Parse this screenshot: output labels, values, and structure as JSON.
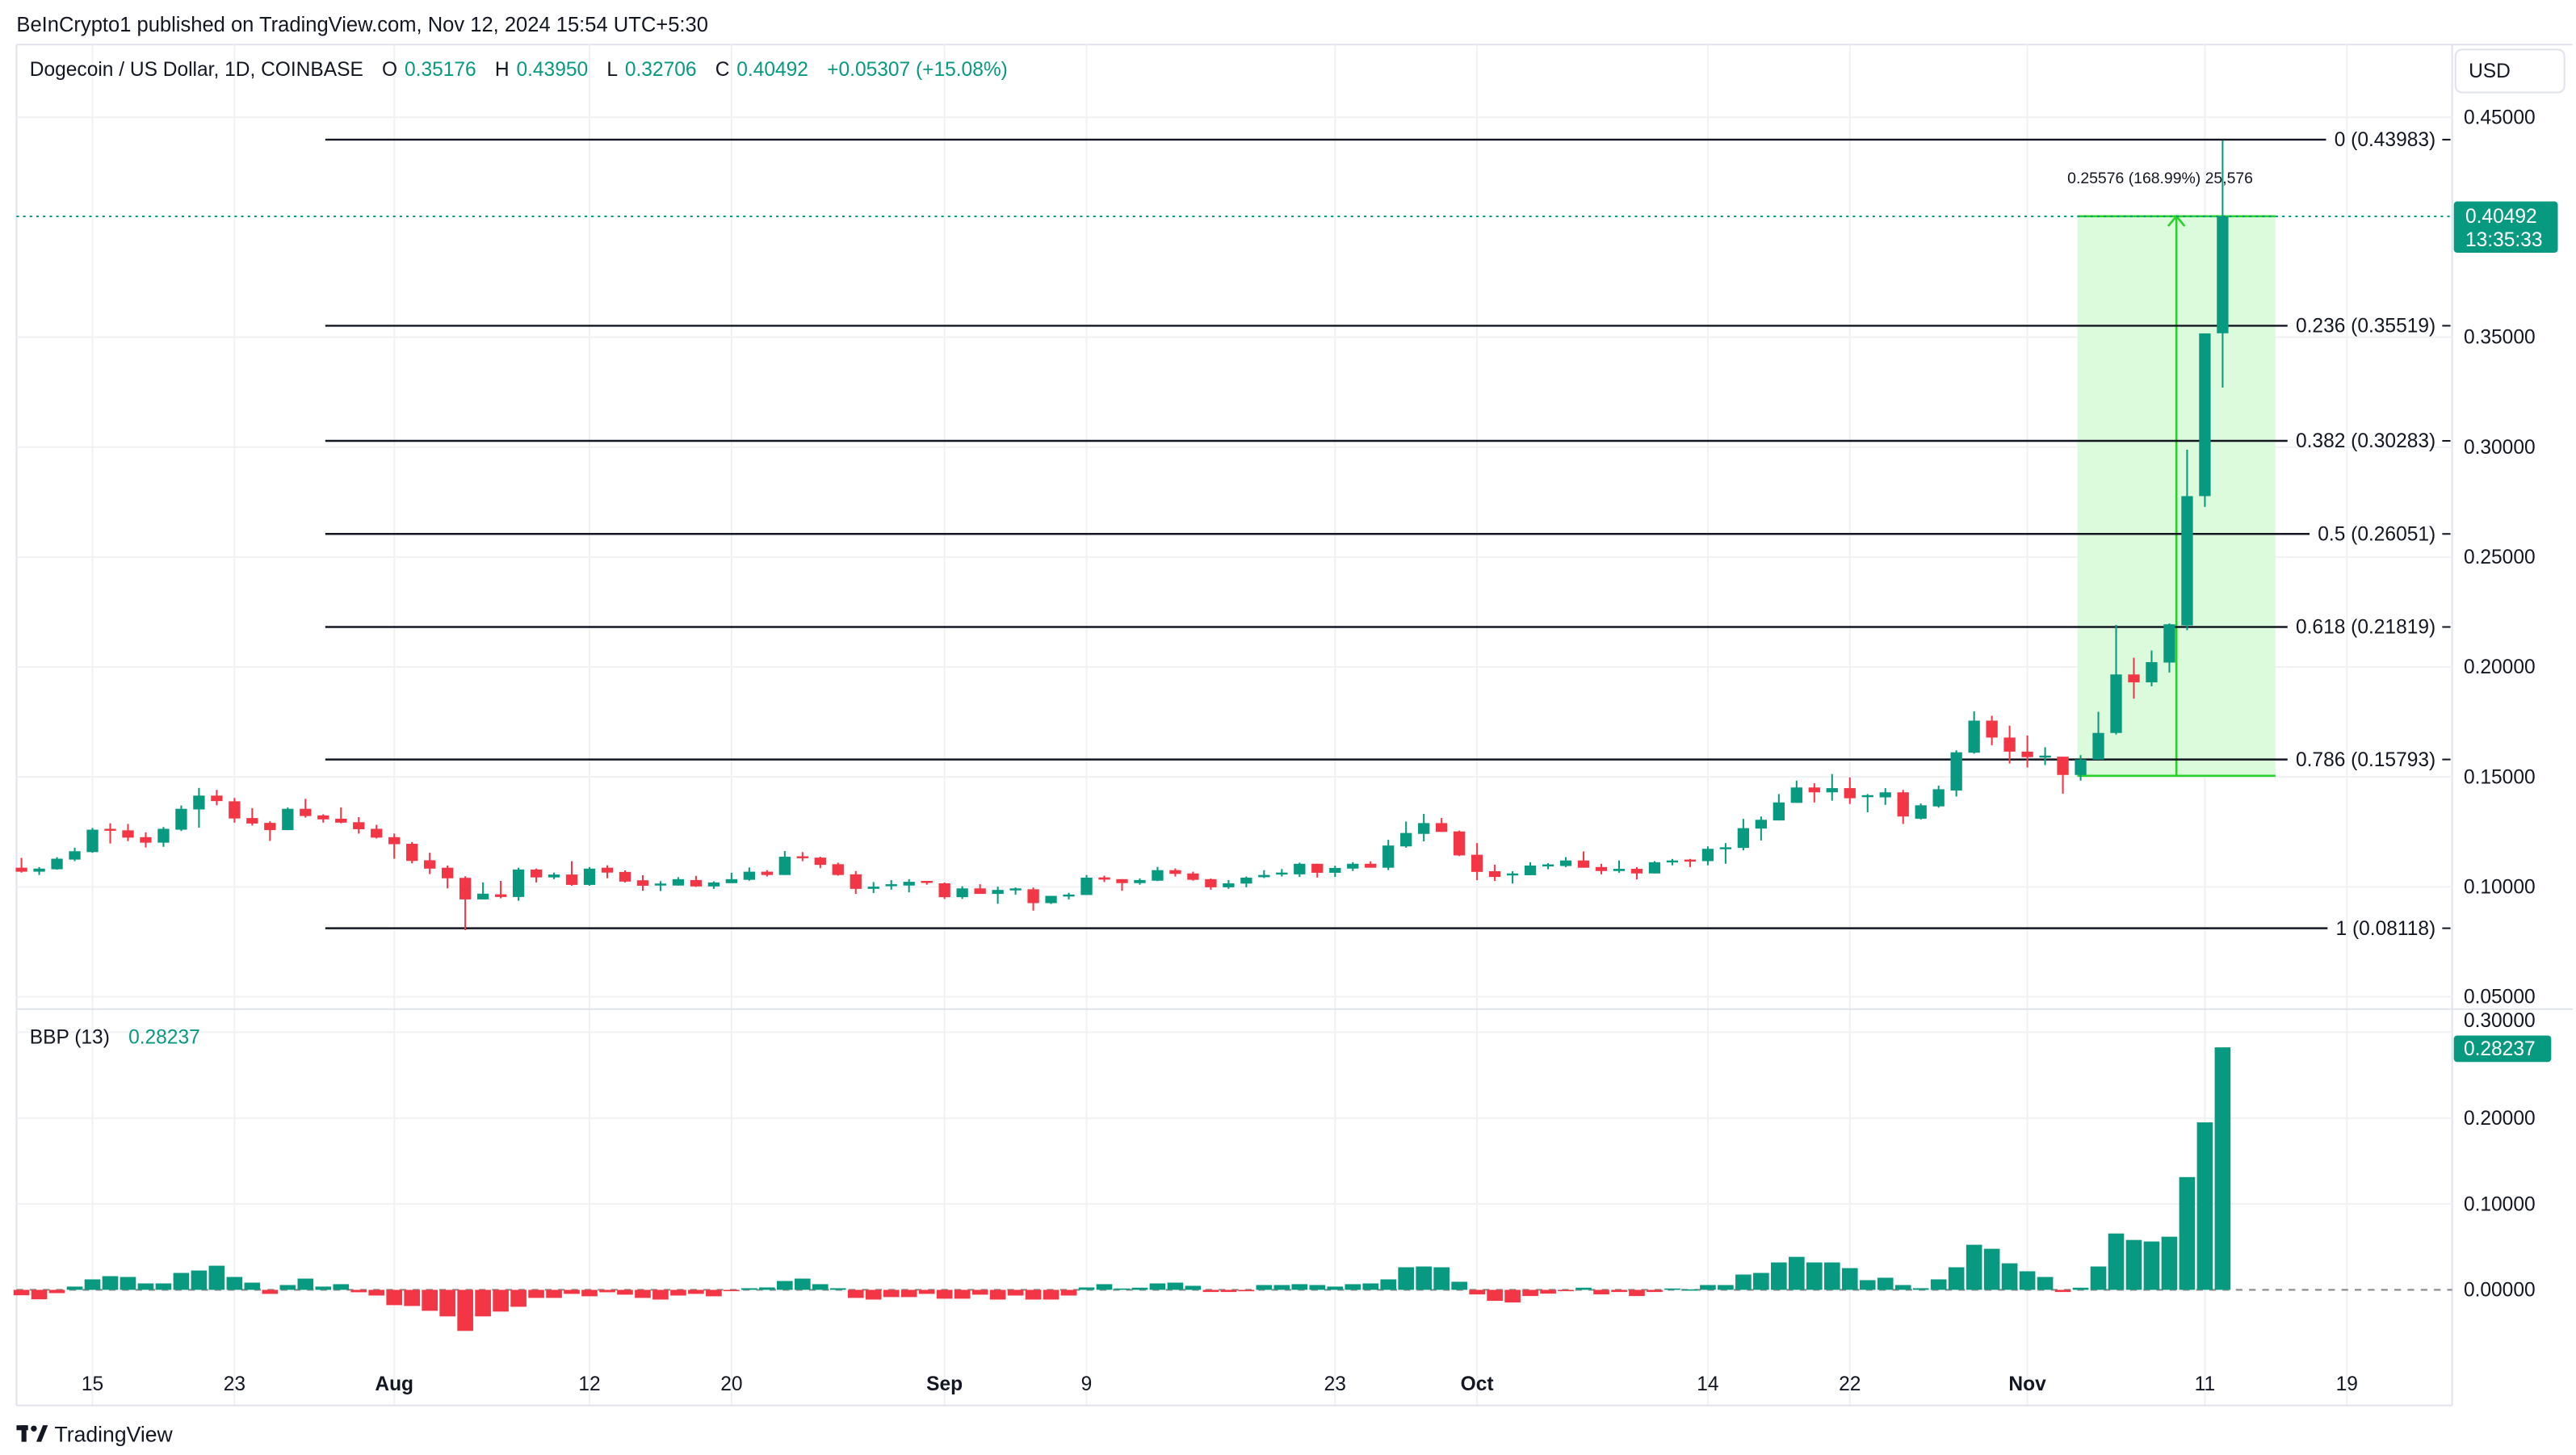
{
  "header": {
    "published": "BeInCrypto1 published on TradingView.com, Nov 12, 2024 15:54 UTC+5:30"
  },
  "legend": {
    "symbol": "Dogecoin / US Dollar, 1D, COINBASE",
    "o_label": "O",
    "o": "0.35176",
    "h_label": "H",
    "h": "0.43950",
    "l_label": "L",
    "l": "0.32706",
    "c_label": "C",
    "c": "0.40492",
    "change": "+0.05307 (+15.08%)"
  },
  "currency_button": "USD",
  "last_price": {
    "value": "0.40492",
    "countdown": "13:35:33",
    "price": 0.40492
  },
  "measure": {
    "label": "0.25576 (168.99%) 25,576",
    "from": 0.1505,
    "to": 0.405
  },
  "colors": {
    "up": "#089981",
    "down": "#f23645",
    "measure_fill": "#dcfbdc",
    "measure_line": "#2bd12b",
    "text": "#131722"
  },
  "indicator": {
    "name": "BBP (13)",
    "value": "0.28237"
  },
  "footer": {
    "brand": "TradingView"
  },
  "chart_data": [
    {
      "type": "candlestick",
      "title": "Dogecoin / US Dollar, 1D, COINBASE",
      "ylim": [
        0.05,
        0.45
      ],
      "y_ticks": [
        "0.45000",
        "0.35000",
        "0.30000",
        "0.25000",
        "0.20000",
        "0.15000",
        "0.10000",
        "0.05000"
      ],
      "y_tick_values": [
        0.45,
        0.35,
        0.3,
        0.25,
        0.2,
        0.15,
        0.1,
        0.05
      ],
      "x_ticks": [
        {
          "label": "15",
          "day": 5,
          "bold": false
        },
        {
          "label": "23",
          "day": 13,
          "bold": false
        },
        {
          "label": "Aug",
          "day": 22,
          "bold": true
        },
        {
          "label": "12",
          "day": 33,
          "bold": false
        },
        {
          "label": "20",
          "day": 41,
          "bold": false
        },
        {
          "label": "Sep",
          "day": 53,
          "bold": true
        },
        {
          "label": "9",
          "day": 61,
          "bold": false
        },
        {
          "label": "23",
          "day": 75,
          "bold": false
        },
        {
          "label": "Oct",
          "day": 83,
          "bold": true
        },
        {
          "label": "14",
          "day": 96,
          "bold": false
        },
        {
          "label": "22",
          "day": 104,
          "bold": false
        },
        {
          "label": "Nov",
          "day": 114,
          "bold": true
        },
        {
          "label": "11",
          "day": 124,
          "bold": false
        },
        {
          "label": "19",
          "day": 132,
          "bold": false
        }
      ],
      "ohlc_fields": [
        "open",
        "high",
        "low",
        "close"
      ],
      "candles": [
        [
          0.1087,
          0.1132,
          0.1065,
          0.1069
        ],
        [
          0.1069,
          0.109,
          0.1054,
          0.1083
        ],
        [
          0.108,
          0.1135,
          0.1078,
          0.1128
        ],
        [
          0.1124,
          0.1178,
          0.1117,
          0.1162
        ],
        [
          0.1158,
          0.1268,
          0.1155,
          0.126
        ],
        [
          0.1264,
          0.1289,
          0.1197,
          0.1258
        ],
        [
          0.1257,
          0.1286,
          0.1208,
          0.1224
        ],
        [
          0.1226,
          0.1248,
          0.1179,
          0.1201
        ],
        [
          0.1201,
          0.1272,
          0.1182,
          0.1264
        ],
        [
          0.126,
          0.137,
          0.1254,
          0.1355
        ],
        [
          0.1352,
          0.145,
          0.1269,
          0.1415
        ],
        [
          0.1415,
          0.1441,
          0.1371,
          0.139
        ],
        [
          0.1389,
          0.1404,
          0.1292,
          0.1311
        ],
        [
          0.1313,
          0.1358,
          0.1279,
          0.1288
        ],
        [
          0.1291,
          0.1298,
          0.1209,
          0.1258
        ],
        [
          0.1258,
          0.1361,
          0.1258,
          0.1355
        ],
        [
          0.1355,
          0.14,
          0.1315,
          0.1322
        ],
        [
          0.1325,
          0.133,
          0.1292,
          0.1307
        ],
        [
          0.131,
          0.1361,
          0.1289,
          0.1292
        ],
        [
          0.1294,
          0.1317,
          0.1242,
          0.1262
        ],
        [
          0.1264,
          0.1282,
          0.122,
          0.1224
        ],
        [
          0.1226,
          0.1242,
          0.1128,
          0.1194
        ],
        [
          0.1196,
          0.1204,
          0.1107,
          0.1118
        ],
        [
          0.1121,
          0.1155,
          0.1058,
          0.1083
        ],
        [
          0.1087,
          0.1097,
          0.0993,
          0.1039
        ],
        [
          0.1041,
          0.1048,
          0.0803,
          0.0943
        ],
        [
          0.0943,
          0.102,
          0.0943,
          0.0969
        ],
        [
          0.0966,
          0.1027,
          0.0948,
          0.0954
        ],
        [
          0.0954,
          0.1087,
          0.0937,
          0.1079
        ],
        [
          0.1079,
          0.1083,
          0.102,
          0.1043
        ],
        [
          0.1043,
          0.1065,
          0.1035,
          0.1056
        ],
        [
          0.1056,
          0.1117,
          0.1005,
          0.1009
        ],
        [
          0.1009,
          0.109,
          0.1005,
          0.1083
        ],
        [
          0.1087,
          0.1098,
          0.1039,
          0.1065
        ],
        [
          0.1068,
          0.1075,
          0.102,
          0.1024
        ],
        [
          0.103,
          0.1053,
          0.0982,
          0.1005
        ],
        [
          0.101,
          0.1026,
          0.0981,
          0.1015
        ],
        [
          0.1006,
          0.1044,
          0.1006,
          0.1035
        ],
        [
          0.1031,
          0.105,
          0.1,
          0.1002
        ],
        [
          0.1002,
          0.1025,
          0.0991,
          0.102
        ],
        [
          0.1017,
          0.1064,
          0.1017,
          0.1035
        ],
        [
          0.1032,
          0.1088,
          0.1028,
          0.1069
        ],
        [
          0.1069,
          0.1076,
          0.1047,
          0.1054
        ],
        [
          0.1054,
          0.1163,
          0.1054,
          0.1137
        ],
        [
          0.1139,
          0.1158,
          0.1117,
          0.1134
        ],
        [
          0.1133,
          0.1137,
          0.1085,
          0.11
        ],
        [
          0.1103,
          0.111,
          0.1051,
          0.1054
        ],
        [
          0.1057,
          0.1072,
          0.0968,
          0.0991
        ],
        [
          0.0991,
          0.1022,
          0.0972,
          0.1001
        ],
        [
          0.1007,
          0.1031,
          0.0987,
          0.1012
        ],
        [
          0.1006,
          0.1035,
          0.0975,
          0.1023
        ],
        [
          0.1027,
          0.1027,
          0.101,
          0.102
        ],
        [
          0.1016,
          0.102,
          0.0945,
          0.0953
        ],
        [
          0.0953,
          0.1003,
          0.0945,
          0.0993
        ],
        [
          0.0993,
          0.1012,
          0.0968,
          0.0968
        ],
        [
          0.0968,
          0.1001,
          0.0923,
          0.0986
        ],
        [
          0.0988,
          0.0997,
          0.0965,
          0.0993
        ],
        [
          0.0989,
          0.0997,
          0.0892,
          0.0926
        ],
        [
          0.0926,
          0.0959,
          0.0922,
          0.0959
        ],
        [
          0.0958,
          0.0973,
          0.0943,
          0.0965
        ],
        [
          0.0963,
          0.1054,
          0.0963,
          0.1042
        ],
        [
          0.1043,
          0.1051,
          0.1022,
          0.1033
        ],
        [
          0.1035,
          0.1035,
          0.0982,
          0.1017
        ],
        [
          0.1017,
          0.1038,
          0.101,
          0.1031
        ],
        [
          0.1028,
          0.1091,
          0.1026,
          0.1076
        ],
        [
          0.1076,
          0.1084,
          0.1047,
          0.1059
        ],
        [
          0.1061,
          0.1069,
          0.1028,
          0.1032
        ],
        [
          0.1035,
          0.1038,
          0.0987,
          0.0998
        ],
        [
          0.0998,
          0.1031,
          0.0991,
          0.1016
        ],
        [
          0.1015,
          0.1047,
          0.0998,
          0.1042
        ],
        [
          0.1044,
          0.1076,
          0.104,
          0.1054
        ],
        [
          0.1059,
          0.1081,
          0.1047,
          0.1065
        ],
        [
          0.1057,
          0.111,
          0.1045,
          0.1105
        ],
        [
          0.1105,
          0.1105,
          0.1042,
          0.1064
        ],
        [
          0.1064,
          0.1096,
          0.1045,
          0.1086
        ],
        [
          0.1083,
          0.1112,
          0.1072,
          0.1105
        ],
        [
          0.1105,
          0.1116,
          0.1087,
          0.1087
        ],
        [
          0.1087,
          0.1214,
          0.1076,
          0.1188
        ],
        [
          0.1184,
          0.1297,
          0.1178,
          0.1245
        ],
        [
          0.1241,
          0.1332,
          0.1207,
          0.129
        ],
        [
          0.129,
          0.1313,
          0.125,
          0.125
        ],
        [
          0.1252,
          0.1256,
          0.114,
          0.1143
        ],
        [
          0.1146,
          0.1199,
          0.103,
          0.1068
        ],
        [
          0.1071,
          0.1101,
          0.1027,
          0.1045
        ],
        [
          0.1057,
          0.1071,
          0.1015,
          0.1061
        ],
        [
          0.1053,
          0.1112,
          0.1053,
          0.1097
        ],
        [
          0.1097,
          0.1108,
          0.108,
          0.1102
        ],
        [
          0.1095,
          0.1135,
          0.109,
          0.112
        ],
        [
          0.112,
          0.1161,
          0.1087,
          0.1087
        ],
        [
          0.109,
          0.1105,
          0.1057,
          0.1072
        ],
        [
          0.1072,
          0.112,
          0.1064,
          0.1082
        ],
        [
          0.1082,
          0.109,
          0.1034,
          0.1061
        ],
        [
          0.1061,
          0.1117,
          0.1061,
          0.1112
        ],
        [
          0.1115,
          0.1127,
          0.1098,
          0.112
        ],
        [
          0.1124,
          0.1127,
          0.109,
          0.1117
        ],
        [
          0.1117,
          0.1184,
          0.1098,
          0.1173
        ],
        [
          0.1173,
          0.1199,
          0.1105,
          0.118
        ],
        [
          0.1177,
          0.1309,
          0.1166,
          0.1267
        ],
        [
          0.1265,
          0.132,
          0.1211,
          0.1305
        ],
        [
          0.1302,
          0.1422,
          0.1302,
          0.1384
        ],
        [
          0.1382,
          0.1483,
          0.1382,
          0.1452
        ],
        [
          0.1452,
          0.1471,
          0.1384,
          0.143
        ],
        [
          0.143,
          0.1513,
          0.1392,
          0.1449
        ],
        [
          0.1449,
          0.1498,
          0.1377,
          0.1403
        ],
        [
          0.1411,
          0.1422,
          0.1339,
          0.1417
        ],
        [
          0.1407,
          0.1449,
          0.1373,
          0.143
        ],
        [
          0.143,
          0.1441,
          0.1286,
          0.132
        ],
        [
          0.131,
          0.1379,
          0.1306,
          0.1371
        ],
        [
          0.1366,
          0.146,
          0.136,
          0.1444
        ],
        [
          0.1438,
          0.1621,
          0.1411,
          0.1612
        ],
        [
          0.161,
          0.1798,
          0.1606,
          0.1756
        ],
        [
          0.1756,
          0.1778,
          0.1644,
          0.1679
        ],
        [
          0.1679,
          0.1733,
          0.1561,
          0.1615
        ],
        [
          0.1615,
          0.1688,
          0.1543,
          0.159
        ],
        [
          0.159,
          0.1635,
          0.1554,
          0.1597
        ],
        [
          0.1592,
          0.1592,
          0.1424,
          0.1509
        ],
        [
          0.1509,
          0.1599,
          0.1483,
          0.1579
        ],
        [
          0.1579,
          0.1796,
          0.1579,
          0.17
        ],
        [
          0.17,
          0.2191,
          0.1693,
          0.1966
        ],
        [
          0.1966,
          0.2042,
          0.1856,
          0.193
        ],
        [
          0.193,
          0.2075,
          0.1912,
          0.2022
        ],
        [
          0.202,
          0.2198,
          0.1975,
          0.2194
        ],
        [
          0.2189,
          0.2988,
          0.2167,
          0.2777
        ],
        [
          0.2777,
          0.3517,
          0.2728,
          0.3517
        ],
        [
          0.35176,
          0.4395,
          0.32706,
          0.40492
        ]
      ],
      "fib_levels": [
        {
          "ratio": 0,
          "price": 0.43983,
          "label": "0 (0.43983)"
        },
        {
          "ratio": 0.236,
          "price": 0.35519,
          "label": "0.236 (0.35519)"
        },
        {
          "ratio": 0.382,
          "price": 0.30283,
          "label": "0.382 (0.30283)"
        },
        {
          "ratio": 0.5,
          "price": 0.26051,
          "label": "0.5 (0.26051)"
        },
        {
          "ratio": 0.618,
          "price": 0.21819,
          "label": "0.618 (0.21819)"
        },
        {
          "ratio": 0.786,
          "price": 0.15793,
          "label": "0.786 (0.15793)"
        },
        {
          "ratio": 1,
          "price": 0.08118,
          "label": "1 (0.08118)"
        }
      ]
    },
    {
      "type": "bar",
      "title": "BBP (13)",
      "ylim": [
        -0.06,
        0.3
      ],
      "y_ticks": [
        "0.30000",
        "0.20000",
        "0.10000",
        "0.00000"
      ],
      "y_tick_values": [
        0.3,
        0.2,
        0.1,
        0.0
      ],
      "values": [
        -0.0063,
        -0.011,
        -0.0038,
        0.0038,
        0.0122,
        0.0159,
        0.015,
        0.0075,
        0.0075,
        0.0197,
        0.0225,
        0.0281,
        0.015,
        0.0084,
        -0.0047,
        0.0056,
        0.0131,
        0.0038,
        0.0066,
        -0.0028,
        -0.0066,
        -0.0178,
        -0.0188,
        -0.0244,
        -0.0309,
        -0.0478,
        -0.0309,
        -0.0253,
        -0.0197,
        -0.0094,
        -0.0094,
        -0.0047,
        -0.0075,
        -0.0028,
        -0.0056,
        -0.0094,
        -0.0113,
        -0.0066,
        -0.0047,
        -0.0075,
        -0.0006,
        0.0019,
        0.0028,
        0.0103,
        0.0131,
        0.0066,
        0.0019,
        -0.0094,
        -0.0113,
        -0.0084,
        -0.0084,
        -0.0047,
        -0.0103,
        -0.0103,
        -0.0056,
        -0.0113,
        -0.0066,
        -0.0113,
        -0.0113,
        -0.0066,
        0.0028,
        0.0066,
        0.0016,
        0.0025,
        0.0075,
        0.0084,
        0.0047,
        -0.0025,
        -0.0025,
        -0.0016,
        0.0056,
        0.0056,
        0.0066,
        0.0056,
        0.0038,
        0.0066,
        0.0075,
        0.0122,
        0.0263,
        0.0272,
        0.0263,
        0.0094,
        -0.0053,
        -0.0128,
        -0.0147,
        -0.0072,
        -0.0044,
        -0.001,
        0.0025,
        -0.0053,
        -0.0025,
        -0.0072,
        -0.0025,
        0.0016,
        0.0006,
        0.0056,
        0.0056,
        0.0178,
        0.0197,
        0.0319,
        0.0384,
        0.0319,
        0.0319,
        0.0253,
        0.0113,
        0.0141,
        0.0056,
        0.0019,
        0.0122,
        0.0263,
        0.0525,
        0.0478,
        0.0309,
        0.0216,
        0.015,
        -0.0025,
        0.0025,
        0.0272,
        0.0656,
        0.0581,
        0.0563,
        0.0619,
        0.1313,
        0.195,
        0.28237
      ]
    }
  ]
}
